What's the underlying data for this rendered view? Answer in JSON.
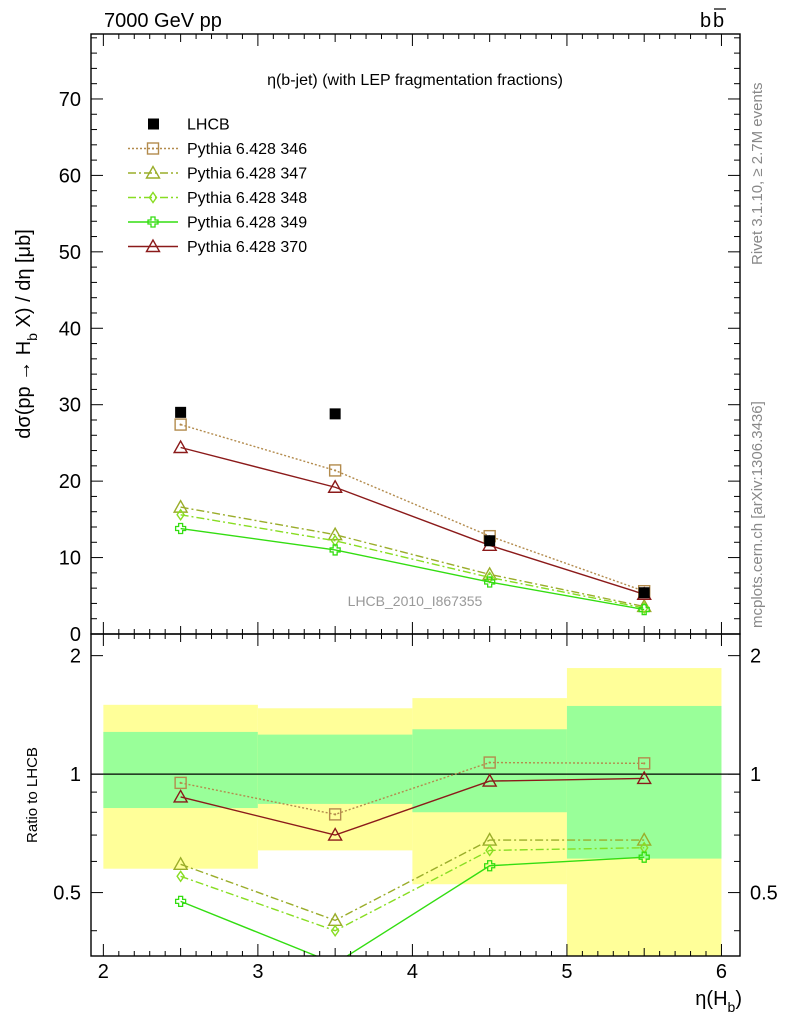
{
  "header": {
    "left": "7000 GeV pp",
    "right_main": "b",
    "right_bar": "b"
  },
  "side_text": {
    "rivet": "Rivet 3.1.10, ≥ 2.7M events",
    "mcplots": "mcplots.cern.ch [arXiv:1306.3436]"
  },
  "chart_data": [
    {
      "type": "line",
      "title": "η(b-jet) (with LEP fragmentation fractions)",
      "watermark": "LHCB_2010_I867355",
      "ylabel": "dσ(pp → H_b X) / dη [μb]",
      "ylabel_parts": {
        "pre": "dσ(pp → H",
        "sub": "b",
        "post": " X) / dη [μb]"
      },
      "xlim": [
        1.92,
        6.12
      ],
      "ylim": [
        0,
        78.5
      ],
      "yticks": [
        0,
        10,
        20,
        30,
        40,
        50,
        60,
        70
      ],
      "ytick_labels": [
        "0",
        "10",
        "20",
        "30",
        "40",
        "50",
        "60",
        "70"
      ],
      "x": [
        2.5,
        3.5,
        4.5,
        5.5
      ],
      "data": {
        "name": "LHCB",
        "values": [
          29.0,
          28.8,
          12.2,
          5.4
        ]
      },
      "series": [
        {
          "name": "Pythia 6.428 346",
          "color": "#b38b4d",
          "dash": "2,2",
          "marker": "square-dot",
          "values": [
            27.4,
            21.4,
            12.8,
            5.6
          ]
        },
        {
          "name": "Pythia 6.428 347",
          "color": "#9aad2a",
          "dash": "8,3,2,3",
          "marker": "triangle",
          "values": [
            16.6,
            13.0,
            7.8,
            3.6
          ]
        },
        {
          "name": "Pythia 6.428 348",
          "color": "#88dd22",
          "dash": "8,3,2,3",
          "marker": "diamond",
          "values": [
            15.6,
            12.2,
            7.4,
            3.4
          ]
        },
        {
          "name": "Pythia 6.428 349",
          "color": "#33dd11",
          "dash": "",
          "marker": "cross",
          "values": [
            13.8,
            11.0,
            6.8,
            3.2
          ]
        },
        {
          "name": "Pythia 6.428 370",
          "color": "#8b1a1a",
          "dash": "",
          "marker": "triangle",
          "values": [
            24.4,
            19.2,
            11.6,
            5.2
          ]
        }
      ]
    },
    {
      "type": "line",
      "ylabel": "Ratio to LHCB",
      "xlabel": "η(H_b)",
      "xlabel_parts": {
        "pre": "η(H",
        "sub": "b",
        "post": ")"
      },
      "xlim": [
        1.92,
        6.12
      ],
      "xticks": [
        2,
        3,
        4,
        5,
        6
      ],
      "xtick_labels": [
        "2",
        "3",
        "4",
        "5",
        "6"
      ],
      "ylim": [
        0.345,
        2.27
      ],
      "yticks_major": [
        0.5,
        1,
        2
      ],
      "ytick_labels": [
        "0.5",
        "1",
        "2"
      ],
      "bands": [
        {
          "x0": 2,
          "x1": 3,
          "yellow": [
            0.575,
            1.5
          ],
          "green": [
            0.82,
            1.28
          ]
        },
        {
          "x0": 3,
          "x1": 4,
          "yellow": [
            0.64,
            1.47
          ],
          "green": [
            0.84,
            1.26
          ]
        },
        {
          "x0": 4,
          "x1": 5,
          "yellow": [
            0.525,
            1.56
          ],
          "green": [
            0.8,
            1.3
          ]
        },
        {
          "x0": 5,
          "x1": 6,
          "yellow": [
            0.34,
            1.86
          ],
          "green": [
            0.61,
            1.49
          ]
        }
      ],
      "x": [
        2.5,
        3.5,
        4.5,
        5.5
      ],
      "series": [
        {
          "name": "Pythia 6.428 346",
          "values": [
            0.95,
            0.79,
            1.07,
            1.065
          ]
        },
        {
          "name": "Pythia 6.428 347",
          "values": [
            0.59,
            0.425,
            0.68,
            0.68
          ]
        },
        {
          "name": "Pythia 6.428 348",
          "values": [
            0.55,
            0.4,
            0.64,
            0.65
          ]
        },
        {
          "name": "Pythia 6.428 349",
          "values": [
            0.475,
            0.33,
            0.585,
            0.615
          ]
        },
        {
          "name": "Pythia 6.428 370",
          "values": [
            0.875,
            0.7,
            0.96,
            0.975
          ]
        }
      ]
    }
  ]
}
